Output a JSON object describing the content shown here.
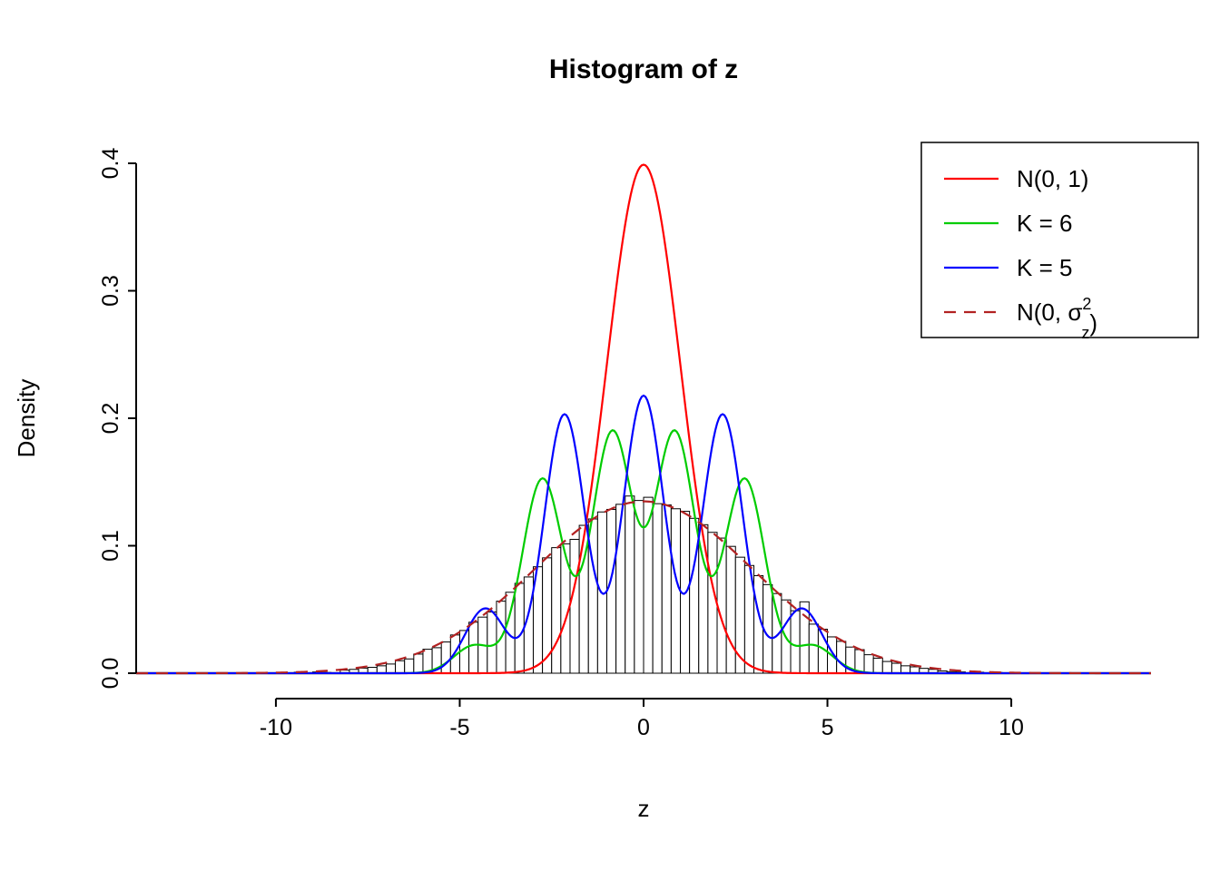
{
  "chart_data": {
    "type": "bar",
    "subtype": "histogram-with-density-curves",
    "title": "Histogram of z",
    "xlabel": "z",
    "ylabel": "Density",
    "xlim": [
      -13.8,
      13.8
    ],
    "ylim": [
      0,
      0.4
    ],
    "x_ticks": [
      -10,
      -5,
      0,
      5,
      10
    ],
    "y_ticks": [
      "0.0",
      "0.1",
      "0.2",
      "0.3",
      "0.4"
    ],
    "grid": false,
    "histogram": {
      "bin_start": -10,
      "bin_width": 0.25,
      "fill": "#ffffff",
      "stroke": "#000000",
      "densities": [
        0.0005,
        0,
        0.0008,
        0,
        0.001,
        0.0006,
        0,
        0.0024,
        0.003,
        0.004,
        0.0046,
        0.0058,
        0.0072,
        0.0098,
        0.0112,
        0.015,
        0.0188,
        0.02,
        0.0245,
        0.03,
        0.0335,
        0.04,
        0.044,
        0.048,
        0.0565,
        0.0635,
        0.0705,
        0.0755,
        0.0835,
        0.0905,
        0.0985,
        0.1015,
        0.105,
        0.116,
        0.121,
        0.1265,
        0.1285,
        0.1325,
        0.139,
        0.1355,
        0.138,
        0.133,
        0.132,
        0.129,
        0.127,
        0.1215,
        0.1165,
        0.1105,
        0.106,
        0.0995,
        0.091,
        0.0845,
        0.0765,
        0.0695,
        0.0625,
        0.0575,
        0.049,
        0.056,
        0.0385,
        0.0345,
        0.0285,
        0.025,
        0.0205,
        0.0185,
        0.0145,
        0.0118,
        0.0092,
        0.0078,
        0.0058,
        0.005,
        0.0038,
        0.003,
        0.0018,
        0.0012,
        0.001,
        0,
        0.0008,
        0,
        0.0006,
        0
      ]
    },
    "curves": [
      {
        "name": "N(0, 1)",
        "color": "#ff0000",
        "dash": false,
        "components": [
          {
            "mean": 0,
            "sd": 1,
            "weight": 1
          }
        ]
      },
      {
        "name": "K = 6",
        "color": "#00cc00",
        "dash": false,
        "components": [
          {
            "mean": -0.85,
            "sd": 0.55,
            "weight": 0.26
          },
          {
            "mean": 0.85,
            "sd": 0.55,
            "weight": 0.26
          },
          {
            "mean": -2.75,
            "sd": 0.55,
            "weight": 0.21
          },
          {
            "mean": 2.75,
            "sd": 0.55,
            "weight": 0.21
          },
          {
            "mean": -4.6,
            "sd": 0.55,
            "weight": 0.03
          },
          {
            "mean": 4.6,
            "sd": 0.55,
            "weight": 0.03
          }
        ]
      },
      {
        "name": "K = 5",
        "color": "#0000ff",
        "dash": false,
        "components": [
          {
            "mean": 0.0,
            "sd": 0.55,
            "weight": 0.3
          },
          {
            "mean": -2.15,
            "sd": 0.55,
            "weight": 0.28
          },
          {
            "mean": 2.15,
            "sd": 0.55,
            "weight": 0.28
          },
          {
            "mean": -4.3,
            "sd": 0.55,
            "weight": 0.07
          },
          {
            "mean": 4.3,
            "sd": 0.55,
            "weight": 0.07
          }
        ]
      },
      {
        "name": "N(0, σz²)",
        "color": "#b22222",
        "dash": true,
        "components": [
          {
            "mean": 0,
            "sd": 2.96,
            "weight": 1
          }
        ]
      }
    ],
    "legend": {
      "position": "top-right",
      "items": [
        {
          "color": "#ff0000",
          "dash": false,
          "parts": [
            {
              "t": "N(0, 1)"
            }
          ]
        },
        {
          "color": "#00cc00",
          "dash": false,
          "parts": [
            {
              "t": "K = 6"
            }
          ]
        },
        {
          "color": "#0000ff",
          "dash": false,
          "parts": [
            {
              "t": "K = 5"
            }
          ]
        },
        {
          "color": "#b22222",
          "dash": true,
          "parts": [
            {
              "t": "N(0, "
            },
            {
              "t": "σ"
            },
            {
              "t": "2",
              "s": "sup"
            },
            {
              "t": "z",
              "s": "sub"
            },
            {
              "t": ")"
            }
          ]
        }
      ]
    }
  }
}
